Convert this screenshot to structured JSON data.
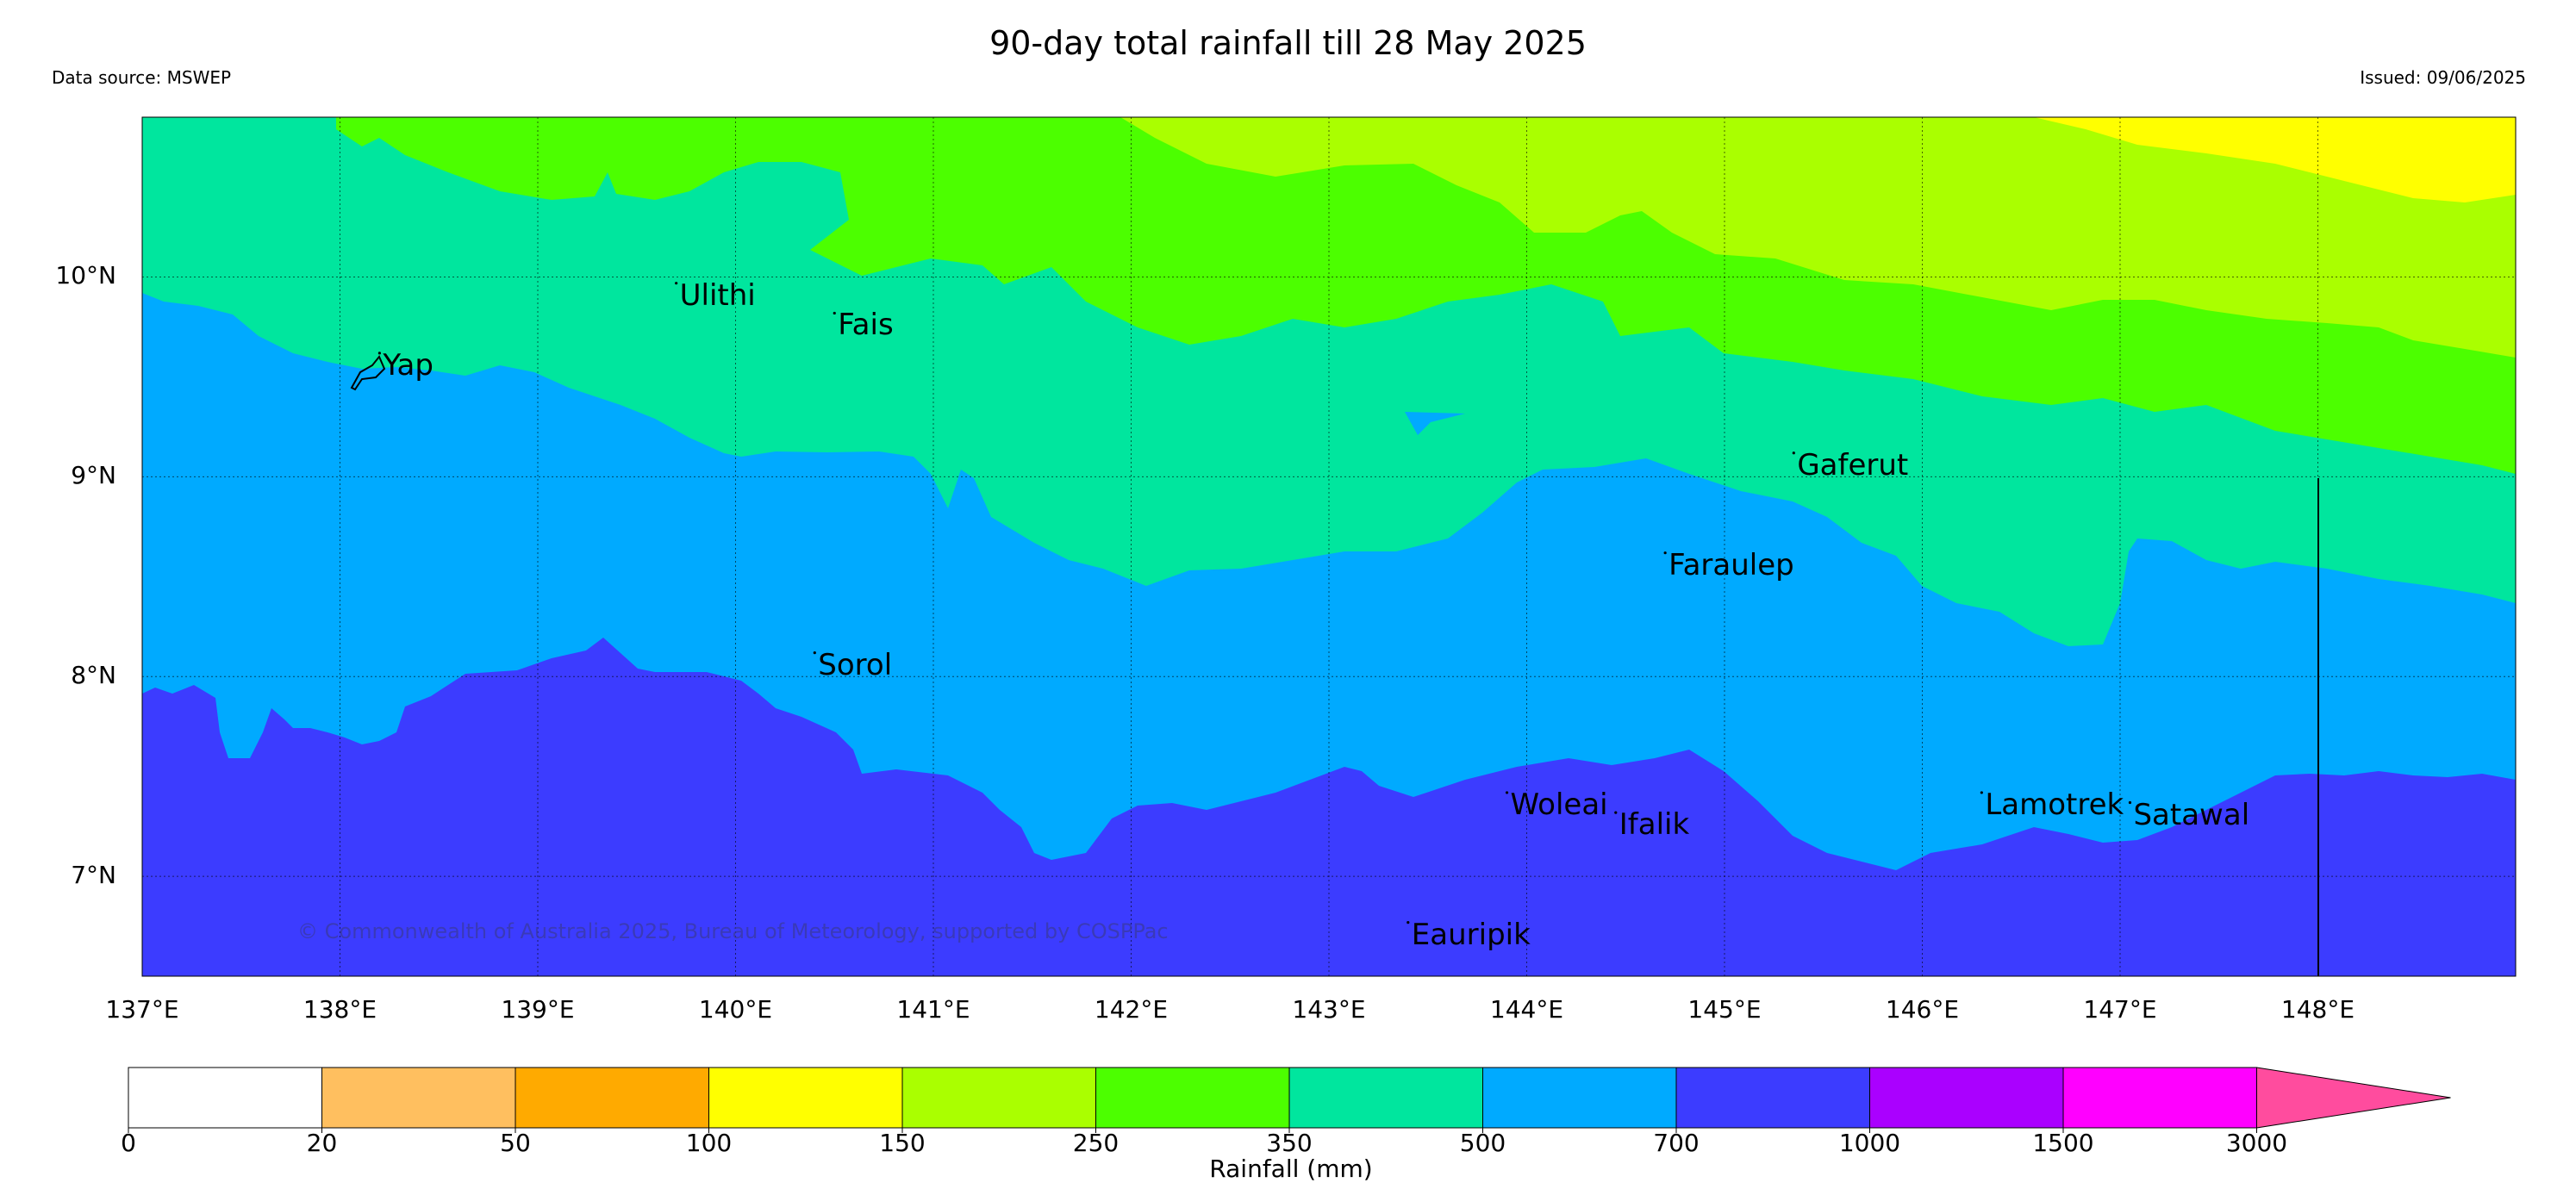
{
  "header": {
    "title": "90-day total rainfall till 28 May 2025",
    "source": "Data source: MSWEP",
    "issued": "Issued: 09/06/2025"
  },
  "axes": {
    "lat_labels": [
      "10°N",
      "9°N",
      "8°N",
      "7°N"
    ],
    "lon_labels": [
      "137°E",
      "138°E",
      "139°E",
      "140°E",
      "141°E",
      "142°E",
      "143°E",
      "144°E",
      "145°E",
      "146°E",
      "147°E",
      "148°E"
    ],
    "lon_range": [
      137,
      149
    ],
    "lat_range": [
      6.5,
      10.8
    ],
    "grid": true
  },
  "places": [
    {
      "name": "Yap",
      "lon": 138.2,
      "lat": 9.55
    },
    {
      "name": "Ulithi",
      "lon": 139.7,
      "lat": 9.9
    },
    {
      "name": "Fais",
      "lon": 140.5,
      "lat": 9.75
    },
    {
      "name": "Gaferut",
      "lon": 145.35,
      "lat": 9.05
    },
    {
      "name": "Faraulep",
      "lon": 144.7,
      "lat": 8.55
    },
    {
      "name": "Sorol",
      "lon": 140.4,
      "lat": 8.05
    },
    {
      "name": "Woleai",
      "lon": 143.9,
      "lat": 7.35
    },
    {
      "name": "Ifalik",
      "lon": 144.45,
      "lat": 7.25
    },
    {
      "name": "Lamotrek",
      "lon": 146.3,
      "lat": 7.35
    },
    {
      "name": "Satawal",
      "lon": 147.05,
      "lat": 7.3
    },
    {
      "name": "Eauripik",
      "lon": 143.4,
      "lat": 6.7
    }
  ],
  "credit": "© Commonwealth of Australia 2025, Bureau of Meteorology, supported by COSPPac",
  "colorbar": {
    "label": "Rainfall (mm)",
    "ticks": [
      "0",
      "20",
      "50",
      "100",
      "150",
      "250",
      "350",
      "500",
      "700",
      "1000",
      "1500",
      "3000"
    ],
    "colors": [
      "#ffffff",
      "#ffbf5f",
      "#ffaa00",
      "#ffff00",
      "#aaff00",
      "#4cff00",
      "#00e69e",
      "#00aaff",
      "#3c3cff",
      "#aa00ff",
      "#ff00ff",
      "#ff4c9e"
    ]
  },
  "map_colors": {
    "band_350_500": "#00e69e",
    "band_250_350": "#4cff00",
    "band_150_250": "#aaff00",
    "band_100_150": "#ffff00",
    "band_500_700": "#00aaff",
    "band_700_1000": "#3c3cff"
  }
}
